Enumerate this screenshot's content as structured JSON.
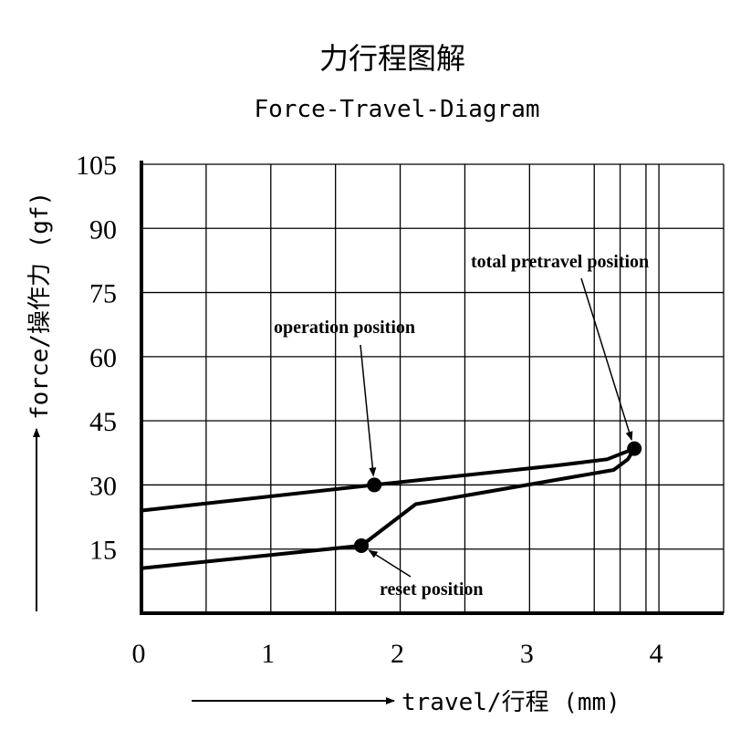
{
  "chart_data": {
    "type": "line",
    "title": "力行程图解",
    "subtitle": "Force-Travel-Diagram",
    "xlabel": "travel/行程 (mm)",
    "ylabel": "force/操作力 (gf)",
    "xlim": [
      0,
      4.5
    ],
    "ylim": [
      0,
      105
    ],
    "x_ticks": [
      0,
      1,
      2,
      3,
      4
    ],
    "y_ticks": [
      15,
      30,
      45,
      60,
      75,
      90,
      105
    ],
    "x_grid": [
      0.5,
      1,
      1.5,
      2,
      2.5,
      3,
      3.5,
      3.7,
      3.9,
      4,
      4.5
    ],
    "grid": true,
    "series": [
      {
        "values_xy": [
          [
            0,
            24
          ],
          [
            1.8,
            30
          ],
          [
            3.2,
            34.5
          ],
          [
            3.6,
            36
          ],
          [
            3.81,
            38.5
          ]
        ]
      },
      {
        "values_xy": [
          [
            0,
            10.5
          ],
          [
            1.7,
            15.8
          ],
          [
            2.12,
            25.5
          ],
          [
            3.65,
            33.5
          ],
          [
            3.76,
            36
          ],
          [
            3.81,
            38.5
          ]
        ]
      }
    ],
    "points": [
      {
        "name": "operation position",
        "x": 1.8,
        "y": 30
      },
      {
        "name": "reset position",
        "x": 1.7,
        "y": 15.8
      },
      {
        "name": "total pretravel position",
        "x": 3.81,
        "y": 38.5
      }
    ],
    "annotations": [
      {
        "text": "operation position",
        "target": "operation position"
      },
      {
        "text": "total pretravel position",
        "target": "total pretravel position"
      },
      {
        "text": "reset position",
        "target": "reset position"
      }
    ]
  }
}
